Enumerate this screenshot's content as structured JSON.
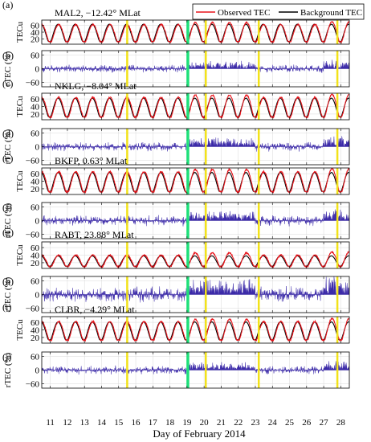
{
  "figure": {
    "xlabel": "Day of February 2014",
    "x_ticks": [
      11,
      12,
      13,
      14,
      15,
      16,
      17,
      18,
      19,
      20,
      21,
      22,
      23,
      24,
      25,
      26,
      27,
      28
    ],
    "legend": {
      "observed": "Observed TEC",
      "background": "Background TEC",
      "placement": "top-right"
    },
    "colors": {
      "observed": "#e8141b",
      "background": "#000000",
      "rtec": "#3b2aa8",
      "yellow_line": "#f2e21a",
      "green_line": "#1fe07a",
      "grid": "#d9d9d9"
    },
    "highlight_days": {
      "yellow": [
        15.5,
        20.1,
        23.2,
        27.8
      ],
      "green": [
        19.05
      ]
    }
  },
  "chart_data": [
    {
      "panel": "(a)",
      "type": "line",
      "title": "MAL2, −12.42° MLat",
      "ylabel": "TECu",
      "yticks": [
        20,
        40,
        60
      ],
      "ylim": [
        5,
        75
      ],
      "x_range": [
        10.5,
        28.5
      ],
      "series": [
        {
          "name": "Observed TEC",
          "daily_peak": 62,
          "daily_min": 12
        },
        {
          "name": "Background TEC",
          "daily_peak": 63,
          "daily_min": 13
        }
      ]
    },
    {
      "panel": "(b)",
      "type": "area",
      "ylabel": "rTEC (%)",
      "yticks": [
        -60,
        0,
        60
      ],
      "ylim": [
        -80,
        80
      ],
      "x_range": [
        10.5,
        28.5
      ],
      "series": [
        {
          "name": "rTEC",
          "typical_amplitude": 15
        }
      ]
    },
    {
      "panel": "(c)",
      "type": "line",
      "title": "NKLG, −8.04° MLat",
      "ylabel": "TECu",
      "yticks": [
        20,
        40,
        60
      ],
      "ylim": [
        5,
        75
      ],
      "x_range": [
        10.5,
        28.5
      ],
      "series": [
        {
          "name": "Observed TEC",
          "daily_peak": 64,
          "daily_min": 12
        },
        {
          "name": "Background TEC",
          "daily_peak": 62,
          "daily_min": 13
        }
      ]
    },
    {
      "panel": "(d)",
      "type": "area",
      "ylabel": "rTEC (%)",
      "yticks": [
        -60,
        0,
        60
      ],
      "ylim": [
        -80,
        80
      ],
      "x_range": [
        10.5,
        28.5
      ],
      "series": [
        {
          "name": "rTEC",
          "typical_amplitude": 18
        }
      ]
    },
    {
      "panel": "(e)",
      "type": "line",
      "title": "BKFP, 0.63° MLat",
      "ylabel": "TECu",
      "yticks": [
        20,
        40,
        60
      ],
      "ylim": [
        5,
        75
      ],
      "x_range": [
        10.5,
        28.5
      ],
      "series": [
        {
          "name": "Observed TEC",
          "daily_peak": 65,
          "daily_min": 12
        },
        {
          "name": "Background TEC",
          "daily_peak": 63,
          "daily_min": 13
        }
      ]
    },
    {
      "panel": "(f)",
      "type": "area",
      "ylabel": "rTEC (%)",
      "yticks": [
        -60,
        0,
        60
      ],
      "ylim": [
        -80,
        80
      ],
      "x_range": [
        10.5,
        28.5
      ],
      "series": [
        {
          "name": "rTEC",
          "typical_amplitude": 20
        }
      ]
    },
    {
      "panel": "(g)",
      "type": "line",
      "title": "RABT, 23.88° MLat",
      "ylabel": "TECu",
      "yticks": [
        20,
        40,
        60
      ],
      "ylim": [
        5,
        75
      ],
      "x_range": [
        10.5,
        28.5
      ],
      "series": [
        {
          "name": "Observed TEC",
          "daily_peak": 40,
          "daily_min": 10
        },
        {
          "name": "Background TEC",
          "daily_peak": 38,
          "daily_min": 11
        }
      ]
    },
    {
      "panel": "(h)",
      "type": "area",
      "ylabel": "rTEC (%)",
      "yticks": [
        -60,
        0,
        60
      ],
      "ylim": [
        -80,
        80
      ],
      "x_range": [
        10.5,
        28.5
      ],
      "series": [
        {
          "name": "rTEC",
          "typical_amplitude": 30
        }
      ]
    },
    {
      "panel": "(i)",
      "type": "line",
      "title": "CLBR, −4.29° MLat",
      "ylabel": "TECu",
      "yticks": [
        20,
        40,
        60
      ],
      "ylim": [
        5,
        75
      ],
      "x_range": [
        10.5,
        28.5
      ],
      "series": [
        {
          "name": "Observed TEC",
          "daily_peak": 62,
          "daily_min": 13
        },
        {
          "name": "Background TEC",
          "daily_peak": 61,
          "daily_min": 14
        }
      ]
    },
    {
      "panel": "(j)",
      "type": "area",
      "ylabel": "rTEC (%)",
      "yticks": [
        -60,
        0,
        60
      ],
      "ylim": [
        -80,
        80
      ],
      "x_range": [
        10.5,
        28.5
      ],
      "series": [
        {
          "name": "rTEC",
          "typical_amplitude": 16
        }
      ]
    }
  ]
}
